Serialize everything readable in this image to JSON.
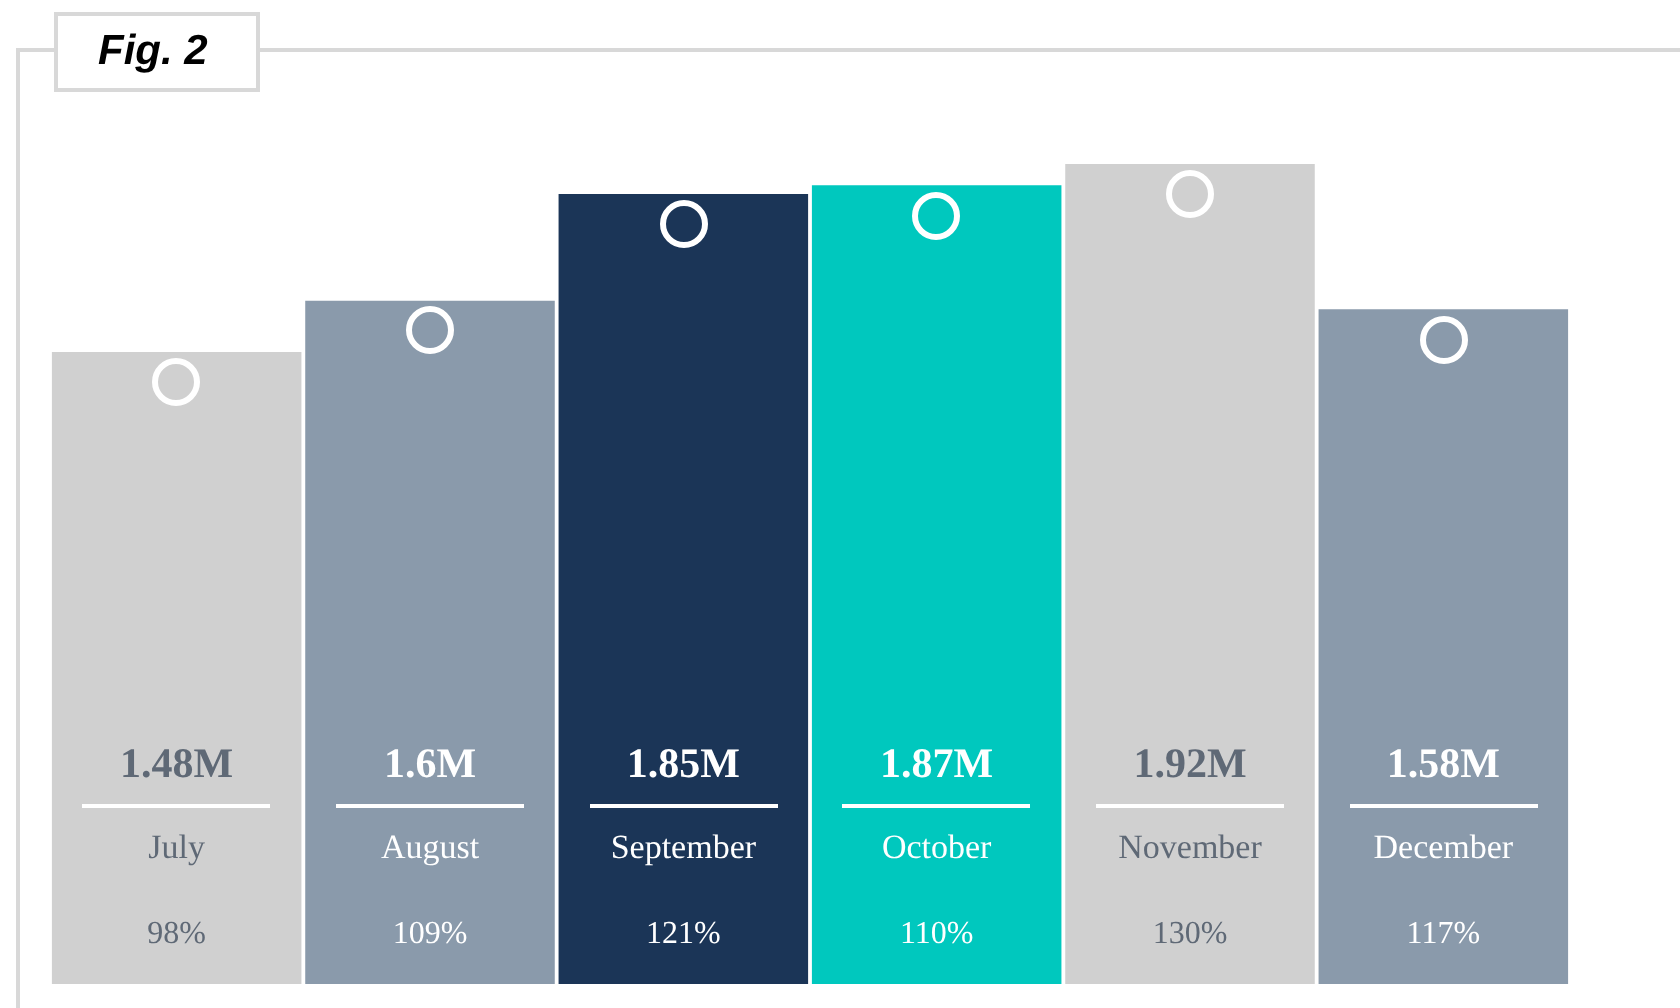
{
  "chart_data": {
    "type": "bar",
    "title": "Fig. 2",
    "categories": [
      "July",
      "August",
      "September",
      "October",
      "November",
      "December"
    ],
    "values": [
      1.48,
      1.6,
      1.85,
      1.87,
      1.92,
      1.58
    ],
    "value_labels": [
      "1.48M",
      "1.6M",
      "1.85M",
      "1.87M",
      "1.92M",
      "1.58M"
    ],
    "colors": [
      "#d0d0d0",
      "#8a9aab",
      "#1b3557",
      "#00c8be",
      "#d0d0d0",
      "#8a9aab"
    ],
    "annotations": [
      "98%",
      "109%",
      "121%",
      "110%",
      "130%",
      "117%"
    ]
  }
}
